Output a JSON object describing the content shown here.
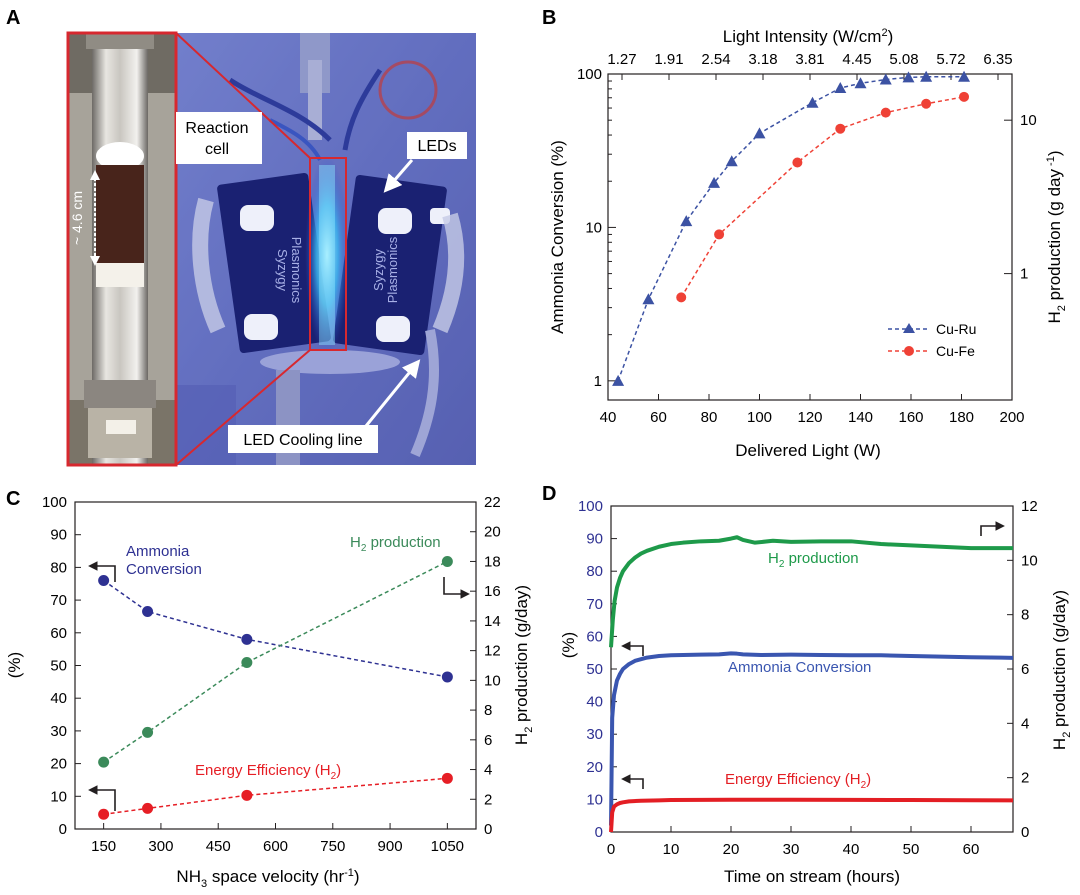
{
  "panels": {
    "A": {
      "letter": "A",
      "labels": {
        "reaction_cell_1": "Reaction",
        "reaction_cell_2": "cell",
        "leds": "LEDs",
        "cooling": "LED Cooling line",
        "scale": "~ 4.6 cm",
        "brand_1": "Syzygy",
        "brand_2": "Plasmonics"
      }
    },
    "B": {
      "letter": "B"
    },
    "C": {
      "letter": "C"
    },
    "D": {
      "letter": "D"
    }
  },
  "chart_data": [
    {
      "id": "B",
      "type": "line",
      "xlabel": "Delivered Light (W)",
      "x2label": "Light Intensity (W/cm2)",
      "ylabel": "Ammonia Conversion (%)",
      "y2label": "H2 production (g day -1)",
      "xlim": [
        40,
        200
      ],
      "xticks": [
        40,
        60,
        80,
        100,
        120,
        140,
        160,
        180,
        200
      ],
      "x2ticks": [
        "1.27",
        "1.91",
        "2.54",
        "3.18",
        "3.81",
        "4.45",
        "5.08",
        "5.72",
        "6.35"
      ],
      "ylim": [
        0.75,
        100
      ],
      "yscale": "log",
      "yticks": [
        1,
        10,
        100
      ],
      "y2lim": [
        0.15,
        20
      ],
      "y2ticks": [
        1,
        10
      ],
      "legend_position": "bottom-right",
      "series": [
        {
          "name": "Cu-Ru",
          "color": "#3c52a3",
          "marker": "triangle",
          "axis": "left",
          "x": [
            44,
            56,
            71,
            82,
            89,
            100,
            121,
            132,
            140,
            150,
            159,
            166,
            181
          ],
          "y": [
            1.0,
            3.4,
            11,
            19.5,
            27,
            41,
            65,
            81,
            87,
            92,
            95,
            96,
            96
          ]
        },
        {
          "name": "Cu-Fe",
          "color": "#ef4136",
          "marker": "circle",
          "axis": "right",
          "x": [
            69,
            84,
            115,
            132,
            150,
            166,
            181
          ],
          "y": [
            0.7,
            1.8,
            5.3,
            8.8,
            11.2,
            12.8,
            14.2
          ]
        }
      ]
    },
    {
      "id": "C",
      "type": "line",
      "xlabel": "NH3 space velocity (hr-1)",
      "ylabel": "(%)",
      "y2label": "H2 production (g/day)",
      "xlim": [
        75,
        1125
      ],
      "xticks": [
        150,
        300,
        450,
        600,
        750,
        900,
        1050
      ],
      "ylim": [
        0,
        100
      ],
      "yticks": [
        0,
        10,
        20,
        30,
        40,
        50,
        60,
        70,
        80,
        90,
        100
      ],
      "y2lim": [
        0,
        22
      ],
      "y2ticks": [
        0,
        2,
        4,
        6,
        8,
        10,
        12,
        14,
        16,
        18,
        20,
        22
      ],
      "series": [
        {
          "name": "Ammonia Conversion",
          "color": "#2e3192",
          "axis": "left",
          "x": [
            150,
            265,
            525,
            1050
          ],
          "y": [
            76,
            66.5,
            58,
            46.5
          ]
        },
        {
          "name": "H2 production",
          "color": "#3b8a5a",
          "axis": "right",
          "x": [
            150,
            265,
            525,
            1050
          ],
          "y": [
            4.5,
            6.5,
            11.2,
            18
          ]
        },
        {
          "name": "Energy Efficiency (H2)",
          "color": "#e61e25",
          "axis": "left",
          "x": [
            150,
            265,
            525,
            1050
          ],
          "y": [
            4.5,
            6.3,
            10.3,
            15.5
          ]
        }
      ]
    },
    {
      "id": "D",
      "type": "line",
      "xlabel": "Time on stream (hours)",
      "ylabel": "(%)",
      "y2label": "H2 production (g/day)",
      "xlim": [
        0,
        67
      ],
      "xticks": [
        0,
        10,
        20,
        30,
        40,
        50,
        60
      ],
      "ylim": [
        0,
        100
      ],
      "yticks": [
        0,
        10,
        20,
        30,
        40,
        50,
        60,
        70,
        80,
        90,
        100
      ],
      "y2lim": [
        0,
        12
      ],
      "y2ticks": [
        0,
        2,
        4,
        6,
        8,
        10,
        12
      ],
      "series": [
        {
          "name": "H2 production",
          "color": "#1e9a4a",
          "axis": "right",
          "x": [
            0,
            0.3,
            0.6,
            1,
            1.5,
            2,
            3,
            4,
            5,
            6,
            8,
            10,
            12,
            15,
            18,
            20,
            21,
            22,
            24,
            27,
            30,
            35,
            40,
            45,
            50,
            55,
            60,
            65,
            67
          ],
          "y": [
            6.8,
            7.8,
            8.5,
            9.0,
            9.35,
            9.6,
            9.9,
            10.1,
            10.25,
            10.35,
            10.5,
            10.6,
            10.65,
            10.7,
            10.72,
            10.8,
            10.85,
            10.75,
            10.65,
            10.72,
            10.68,
            10.7,
            10.7,
            10.6,
            10.55,
            10.5,
            10.45,
            10.45,
            10.45
          ]
        },
        {
          "name": "Ammonia Conversion",
          "color": "#3a56b0",
          "axis": "left",
          "x": [
            0,
            0.2,
            0.5,
            1,
            1.5,
            2,
            3,
            4,
            5,
            6,
            8,
            10,
            12,
            15,
            18,
            20,
            21,
            22,
            25,
            30,
            35,
            40,
            45,
            50,
            55,
            60,
            65,
            67
          ],
          "y": [
            2,
            35,
            42,
            46.5,
            48.5,
            50,
            51.5,
            52.5,
            53,
            53.5,
            54,
            54.2,
            54.3,
            54.4,
            54.5,
            54.8,
            54.7,
            54.5,
            54.3,
            54.4,
            54.3,
            54.2,
            54.2,
            54,
            53.8,
            53.6,
            53.5,
            53.4
          ]
        },
        {
          "name": "Energy Efficiency (H2)",
          "color": "#e31e24",
          "axis": "left",
          "x": [
            0,
            0.2,
            0.5,
            1,
            1.5,
            2,
            3,
            5,
            8,
            10,
            15,
            20,
            30,
            40,
            50,
            60,
            67
          ],
          "y": [
            0,
            6,
            7.8,
            8.5,
            8.9,
            9.1,
            9.4,
            9.6,
            9.7,
            9.8,
            9.85,
            9.9,
            9.9,
            9.85,
            9.8,
            9.75,
            9.7
          ]
        }
      ]
    }
  ]
}
